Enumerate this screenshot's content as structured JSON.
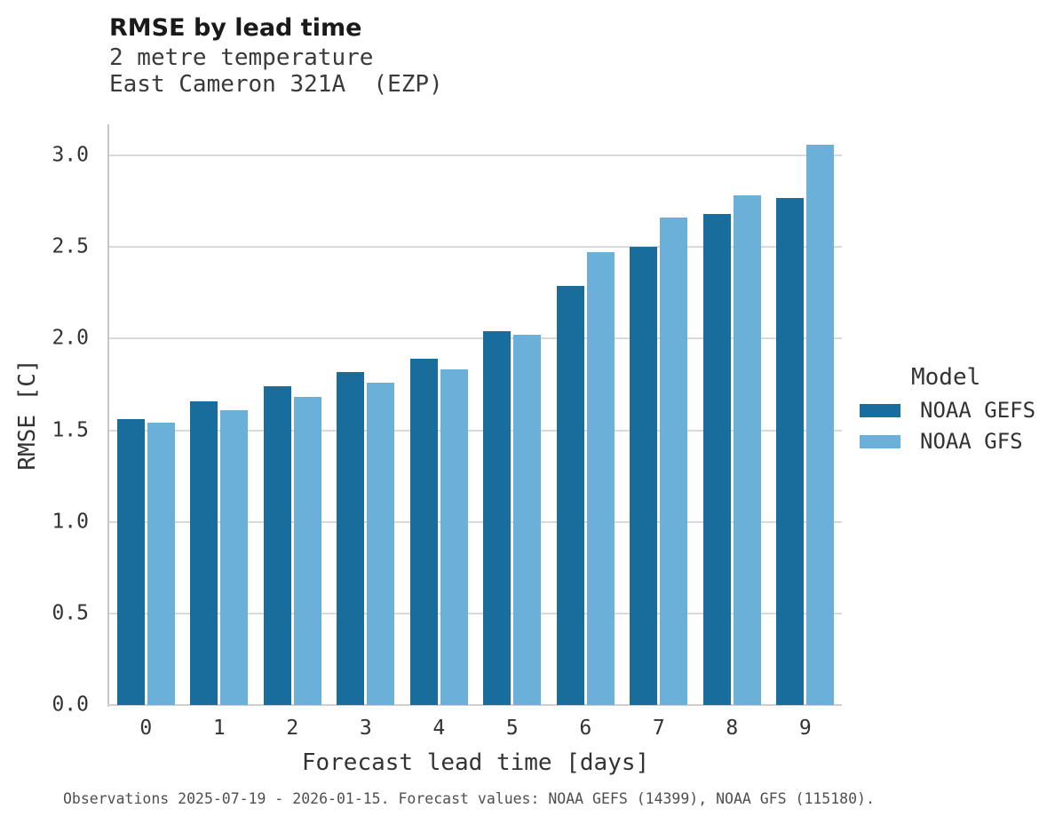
{
  "title": "RMSE by lead time",
  "subtitle_line1": "2 metre temperature",
  "subtitle_line2": "East Cameron 321A  (EZP)",
  "footer": "Observations 2025-07-19 - 2026-01-15. Forecast values: NOAA GEFS (14399), NOAA GFS (115180).",
  "legend": {
    "title": "Model",
    "entries": [
      {
        "label": "NOAA GEFS",
        "color": "#186d9d"
      },
      {
        "label": "NOAA GFS",
        "color": "#6bb0d8"
      }
    ]
  },
  "colors": {
    "series_dark": "#186d9d",
    "series_light": "#6bb0d8",
    "gridline": "#d9d9d9",
    "axis_spine": "#c6c6c6",
    "text": "#333333",
    "footer_text": "#4f4f4f"
  },
  "chart_data": {
    "type": "bar",
    "title": "RMSE by lead time",
    "subtitle": [
      "2 metre temperature",
      "East Cameron 321A  (EZP)"
    ],
    "xlabel": "Forecast lead time [days]",
    "ylabel": "RMSE [C]",
    "categories": [
      "0",
      "1",
      "2",
      "3",
      "4",
      "5",
      "6",
      "7",
      "8",
      "9"
    ],
    "series": [
      {
        "name": "NOAA GEFS",
        "color": "#186d9d",
        "values": [
          1.56,
          1.66,
          1.74,
          1.82,
          1.89,
          2.04,
          2.29,
          2.5,
          2.68,
          2.77
        ]
      },
      {
        "name": "NOAA GFS",
        "color": "#6bb0d8",
        "values": [
          1.54,
          1.61,
          1.68,
          1.76,
          1.83,
          2.02,
          2.47,
          2.66,
          2.78,
          3.06
        ]
      }
    ],
    "yticks": [
      0.0,
      0.5,
      1.0,
      1.5,
      2.0,
      2.5,
      3.0
    ],
    "ytick_labels": [
      "0.0",
      "0.5",
      "1.0",
      "1.5",
      "2.0",
      "2.5",
      "3.0"
    ],
    "ylim": [
      0,
      3.17
    ],
    "grid": true,
    "legend_title": "Model",
    "legend_position": "right",
    "annotation": "Observations 2025-07-19 - 2026-01-15. Forecast values: NOAA GEFS (14399), NOAA GFS (115180)."
  }
}
